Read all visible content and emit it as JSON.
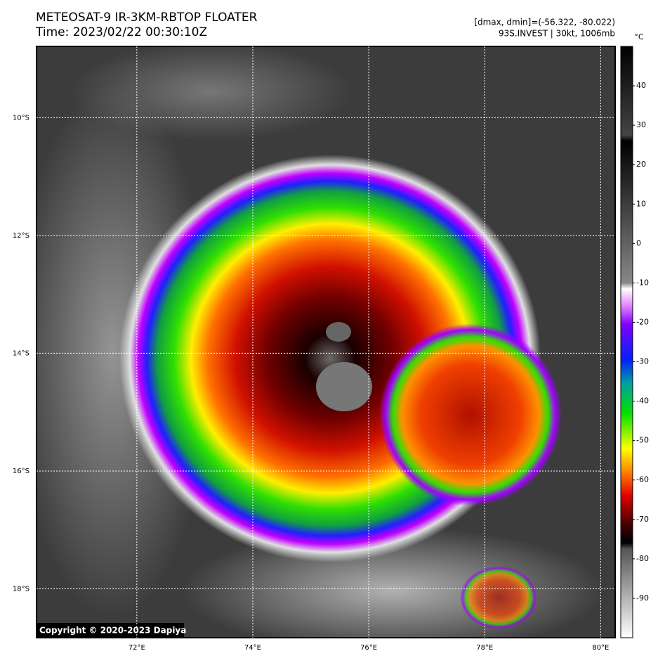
{
  "header": {
    "title": "METEOSAT-9 IR-3KM-RBTOP FLOATER",
    "time": "Time: 2023/02/22 00:30:10Z",
    "range": "[dmax, dmin]=(-56.322, -80.022)",
    "storm": "93S.INVEST | 30kt, 1006mb"
  },
  "map": {
    "xlim": [
      70.27,
      80.25
    ],
    "ylim": [
      -18.83,
      -8.79
    ],
    "xticks": [
      {
        "value": 72,
        "label": "72°E"
      },
      {
        "value": 74,
        "label": "74°E"
      },
      {
        "value": 76,
        "label": "76°E"
      },
      {
        "value": 78,
        "label": "78°E"
      },
      {
        "value": 80,
        "label": "80°E"
      }
    ],
    "yticks": [
      {
        "value": -10,
        "label": "10°S"
      },
      {
        "value": -12,
        "label": "12°S"
      },
      {
        "value": -14,
        "label": "14°S"
      },
      {
        "value": -16,
        "label": "16°S"
      },
      {
        "value": -18,
        "label": "18°S"
      }
    ],
    "copyright": "Copyright © 2020-2023 Dapiya"
  },
  "colorbar": {
    "unit": "°C",
    "lim": [
      -100,
      50
    ],
    "ticks": [
      40,
      30,
      20,
      10,
      0,
      -10,
      -20,
      -30,
      -40,
      -50,
      -60,
      -70,
      -80,
      -90
    ]
  }
}
